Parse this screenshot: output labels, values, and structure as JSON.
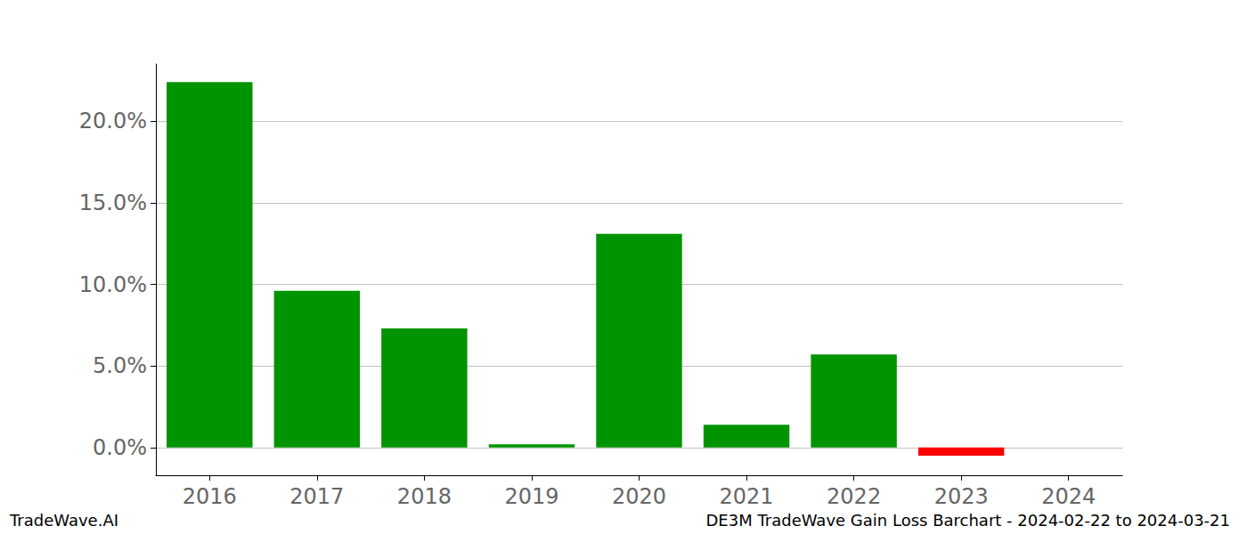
{
  "chart_data": {
    "type": "bar",
    "title": "DE3M TradeWave Gain Loss Barchart - 2024-02-22 to 2024-03-21",
    "annotations": [
      "TradeWave.AI"
    ],
    "categories": [
      "2016",
      "2017",
      "2018",
      "2019",
      "2020",
      "2021",
      "2022",
      "2023",
      "2024"
    ],
    "values": [
      22.4,
      9.6,
      7.3,
      0.2,
      13.1,
      1.4,
      5.7,
      -0.5,
      null
    ],
    "colors": [
      "#009400",
      "#009400",
      "#009400",
      "#009400",
      "#009400",
      "#009400",
      "#009400",
      "#ff0000",
      "#009400"
    ],
    "ylim": [
      -1.7,
      23.5
    ],
    "yticks": [
      {
        "value": 0,
        "label": "0.0%"
      },
      {
        "value": 5,
        "label": "5.0%"
      },
      {
        "value": 10,
        "label": "10.0%"
      },
      {
        "value": 15,
        "label": "15.0%"
      },
      {
        "value": 20,
        "label": "20.0%"
      }
    ],
    "grid": true
  }
}
